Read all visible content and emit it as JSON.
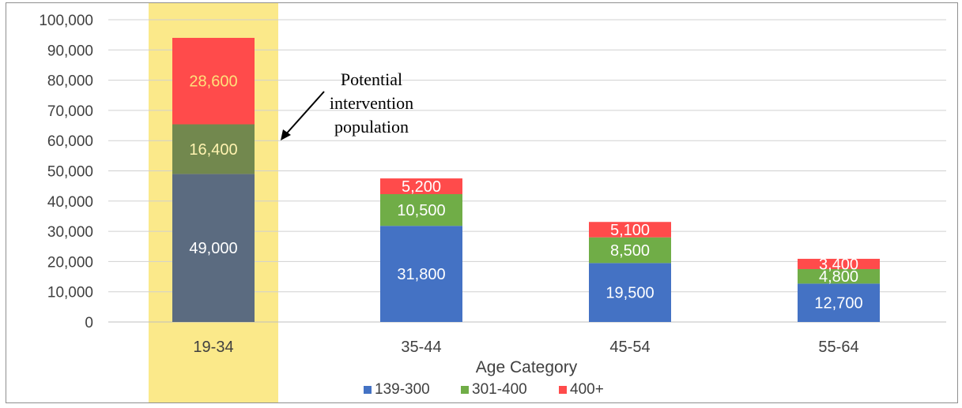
{
  "chart_data": {
    "type": "bar",
    "stacked": true,
    "categories": [
      "19-34",
      "35-44",
      "45-54",
      "55-64"
    ],
    "series": [
      {
        "name": "139-300",
        "values": [
          49000,
          31800,
          19500,
          12700
        ],
        "color": "#4472c4"
      },
      {
        "name": "301-400",
        "values": [
          16400,
          10500,
          8500,
          4800
        ],
        "color": "#70ad47"
      },
      {
        "name": "400+",
        "values": [
          28600,
          5200,
          5100,
          3400
        ],
        "color": "#ff4b4b"
      }
    ],
    "data_labels": [
      [
        "49,000",
        "31,800",
        "19,500",
        "12,700"
      ],
      [
        "16,400",
        "10,500",
        "8,500",
        "4,800"
      ],
      [
        "28,600",
        "5,200",
        "5,100",
        "3,400"
      ]
    ],
    "xlabel": "Age Category",
    "ylabel": "",
    "ylim": [
      0,
      100000
    ],
    "yticks": [
      0,
      10000,
      20000,
      30000,
      40000,
      50000,
      60000,
      70000,
      80000,
      90000,
      100000
    ],
    "ytick_labels": [
      "0",
      "10,000",
      "20,000",
      "30,000",
      "40,000",
      "50,000",
      "60,000",
      "70,000",
      "80,000",
      "90,000",
      "100,000"
    ],
    "grid": true,
    "legend_position": "bottom",
    "highlight": {
      "category": "19-34",
      "color": "#fbe98a"
    },
    "annotation": {
      "lines": [
        "Potential",
        "intervention",
        "population"
      ]
    }
  }
}
